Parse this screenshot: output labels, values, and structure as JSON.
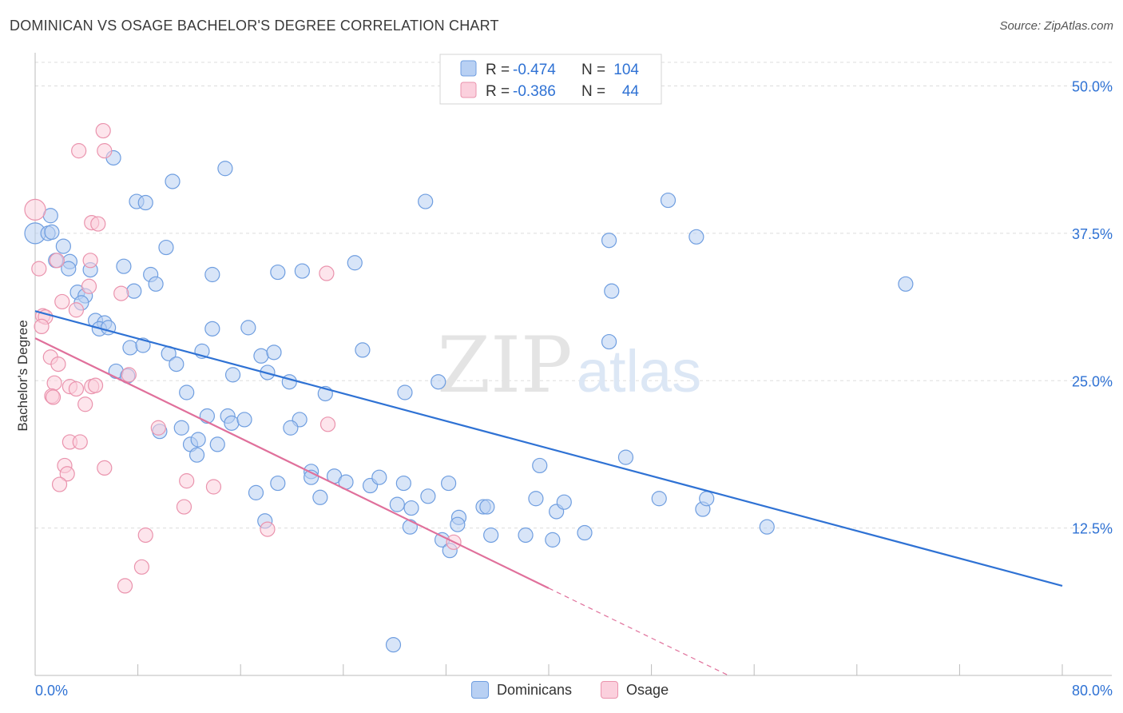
{
  "title": "DOMINICAN VS OSAGE BACHELOR'S DEGREE CORRELATION CHART",
  "source": "Source: ZipAtlas.com",
  "watermark": {
    "zip": "ZIP",
    "atlas": "atlas"
  },
  "colors": {
    "blue": "#2f72d4",
    "blue_fill": "#b8d0f3",
    "blue_stroke": "#6f9ee0",
    "pink": "#e0709b",
    "pink_fill": "#fbd0dd",
    "pink_stroke": "#ea93ad",
    "value_text": "#2f72d4",
    "grid": "#dddddd"
  },
  "legend_top": [
    {
      "r_label": "R = ",
      "r_value": "-0.474",
      "n_label": "N = ",
      "n_value": "104"
    },
    {
      "r_label": "R = ",
      "r_value": "-0.386",
      "n_label": "N = ",
      "n_value": "44"
    }
  ],
  "chart_data": {
    "type": "scatter",
    "title": "DOMINICAN VS OSAGE BACHELOR'S DEGREE CORRELATION CHART",
    "ylabel": "Bachelor's Degree",
    "xlabel": "",
    "xlim": [
      0,
      80
    ],
    "ylim": [
      0,
      52
    ],
    "x_tick_labels": [
      "0.0%",
      "80.0%"
    ],
    "y_ticks": [
      12.5,
      25,
      37.5,
      50
    ],
    "y_tick_labels": [
      "12.5%",
      "25.0%",
      "37.5%",
      "50.0%"
    ],
    "grid": true,
    "legend_position": "top-center",
    "series": [
      {
        "name": "Dominicans",
        "color": "#2f72d4",
        "trendline": {
          "x": [
            0,
            80
          ],
          "y": [
            30.9,
            7.6
          ]
        },
        "points": [
          [
            0,
            37.5
          ],
          [
            1,
            37.5
          ],
          [
            1.3,
            37.6
          ],
          [
            1.2,
            39.0
          ],
          [
            2.2,
            36.4
          ],
          [
            1.6,
            35.2
          ],
          [
            2.7,
            35.1
          ],
          [
            2.6,
            34.5
          ],
          [
            4.3,
            34.4
          ],
          [
            3.3,
            32.5
          ],
          [
            3.9,
            32.2
          ],
          [
            3.6,
            31.6
          ],
          [
            4.7,
            30.1
          ],
          [
            5.4,
            29.9
          ],
          [
            5.0,
            29.4
          ],
          [
            5.7,
            29.5
          ],
          [
            6.1,
            43.9
          ],
          [
            7.9,
            40.2
          ],
          [
            8.6,
            40.1
          ],
          [
            10.7,
            41.9
          ],
          [
            10.2,
            36.3
          ],
          [
            6.9,
            34.7
          ],
          [
            9.0,
            34.0
          ],
          [
            9.4,
            33.2
          ],
          [
            7.7,
            32.6
          ],
          [
            13.8,
            34.0
          ],
          [
            18.9,
            34.2
          ],
          [
            20.8,
            34.3
          ],
          [
            24.9,
            35.0
          ],
          [
            13.8,
            29.4
          ],
          [
            16.6,
            29.5
          ],
          [
            7.4,
            27.8
          ],
          [
            8.4,
            28.0
          ],
          [
            10.4,
            27.3
          ],
          [
            11.0,
            26.4
          ],
          [
            13.0,
            27.5
          ],
          [
            17.6,
            27.1
          ],
          [
            18.6,
            27.4
          ],
          [
            6.3,
            25.8
          ],
          [
            7.2,
            25.4
          ],
          [
            15.4,
            25.5
          ],
          [
            18.1,
            25.7
          ],
          [
            19.8,
            24.9
          ],
          [
            25.5,
            27.6
          ],
          [
            31.4,
            24.9
          ],
          [
            11.8,
            24.0
          ],
          [
            22.6,
            23.9
          ],
          [
            13.4,
            22.0
          ],
          [
            15.0,
            22.0
          ],
          [
            15.3,
            21.4
          ],
          [
            16.3,
            21.7
          ],
          [
            20.6,
            21.7
          ],
          [
            11.4,
            21.0
          ],
          [
            9.7,
            20.7
          ],
          [
            12.1,
            19.6
          ],
          [
            12.7,
            20.0
          ],
          [
            14.2,
            19.6
          ],
          [
            19.9,
            21.0
          ],
          [
            12.6,
            18.7
          ],
          [
            21.5,
            17.3
          ],
          [
            21.5,
            16.8
          ],
          [
            23.3,
            16.9
          ],
          [
            24.2,
            16.4
          ],
          [
            26.1,
            16.1
          ],
          [
            26.8,
            16.8
          ],
          [
            28.7,
            16.3
          ],
          [
            30.6,
            15.2
          ],
          [
            32.2,
            16.3
          ],
          [
            18.9,
            16.3
          ],
          [
            17.2,
            15.5
          ],
          [
            22.2,
            15.1
          ],
          [
            28.2,
            14.5
          ],
          [
            29.3,
            14.2
          ],
          [
            33.0,
            13.4
          ],
          [
            34.9,
            14.3
          ],
          [
            35.2,
            14.3
          ],
          [
            32.9,
            12.8
          ],
          [
            29.2,
            12.6
          ],
          [
            35.5,
            11.9
          ],
          [
            38.2,
            11.9
          ],
          [
            39.0,
            15.0
          ],
          [
            39.3,
            17.8
          ],
          [
            40.6,
            13.9
          ],
          [
            41.2,
            14.7
          ],
          [
            40.3,
            11.5
          ],
          [
            42.8,
            12.1
          ],
          [
            31.7,
            11.5
          ],
          [
            32.3,
            10.6
          ],
          [
            44.7,
            28.3
          ],
          [
            44.7,
            36.9
          ],
          [
            44.9,
            32.6
          ],
          [
            46.0,
            18.5
          ],
          [
            48.6,
            15.0
          ],
          [
            49.3,
            40.3
          ],
          [
            51.5,
            37.2
          ],
          [
            52.0,
            14.1
          ],
          [
            52.3,
            15.0
          ],
          [
            57.0,
            12.6
          ],
          [
            67.8,
            33.2
          ],
          [
            30.4,
            40.2
          ],
          [
            14.8,
            43.0
          ],
          [
            27.9,
            2.6
          ],
          [
            17.9,
            13.1
          ],
          [
            28.8,
            24.0
          ]
        ]
      },
      {
        "name": "Osage",
        "color": "#e0709b",
        "trendline": {
          "x": [
            0,
            40
          ],
          "y": [
            28.6,
            7.4
          ]
        },
        "trendline_extension": {
          "x": [
            40,
            54
          ],
          "y": [
            7.4,
            0
          ]
        },
        "points": [
          [
            0,
            39.5
          ],
          [
            0.3,
            34.5
          ],
          [
            0.6,
            30.5
          ],
          [
            0.8,
            30.4
          ],
          [
            0.5,
            29.6
          ],
          [
            1.7,
            35.2
          ],
          [
            2.1,
            31.7
          ],
          [
            3.2,
            31.0
          ],
          [
            4.2,
            33.0
          ],
          [
            4.3,
            35.2
          ],
          [
            3.4,
            44.5
          ],
          [
            5.3,
            46.2
          ],
          [
            5.4,
            44.5
          ],
          [
            4.4,
            38.4
          ],
          [
            4.9,
            38.3
          ],
          [
            1.2,
            27.0
          ],
          [
            1.8,
            26.4
          ],
          [
            1.5,
            24.8
          ],
          [
            1.3,
            23.7
          ],
          [
            2.7,
            24.5
          ],
          [
            3.2,
            24.3
          ],
          [
            4.4,
            24.5
          ],
          [
            4.7,
            24.6
          ],
          [
            1.4,
            23.6
          ],
          [
            3.9,
            23.0
          ],
          [
            2.7,
            19.8
          ],
          [
            3.5,
            19.8
          ],
          [
            2.3,
            17.8
          ],
          [
            2.5,
            17.1
          ],
          [
            1.9,
            16.2
          ],
          [
            5.4,
            17.6
          ],
          [
            6.7,
            32.4
          ],
          [
            7.3,
            25.5
          ],
          [
            9.6,
            21.0
          ],
          [
            11.8,
            16.5
          ],
          [
            11.6,
            14.3
          ],
          [
            13.9,
            16.0
          ],
          [
            8.6,
            11.9
          ],
          [
            8.3,
            9.2
          ],
          [
            7.0,
            7.6
          ],
          [
            22.8,
            21.3
          ],
          [
            22.7,
            34.1
          ],
          [
            18.1,
            12.4
          ],
          [
            32.6,
            11.3
          ]
        ]
      }
    ]
  }
}
